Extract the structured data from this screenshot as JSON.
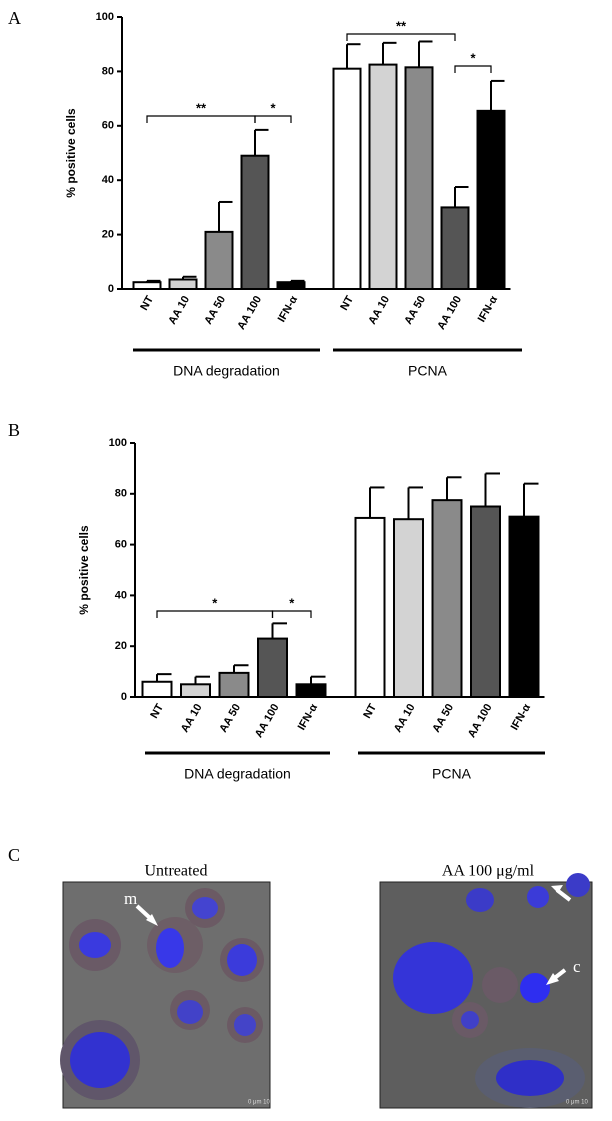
{
  "panels": [
    "A",
    "B",
    "C"
  ],
  "chart_data": [
    {
      "type": "bar",
      "ylabel": "% positive cells",
      "categories": [
        "NT",
        "AA 10",
        "AA 50",
        "AA 100",
        "IFN-α",
        "NT",
        "AA 10",
        "AA 50",
        "AA 100",
        "IFN-α"
      ],
      "values": [
        2.5,
        3.5,
        21,
        49,
        2.5,
        81,
        82.5,
        81.5,
        30,
        65.5
      ],
      "errors": [
        0.5,
        1,
        11,
        9.5,
        0.5,
        9,
        8,
        9.5,
        7.5,
        11
      ],
      "colors": [
        "#ffffff",
        "#d3d3d3",
        "#8a8a8a",
        "#555555",
        "#000000",
        "#ffffff",
        "#d3d3d3",
        "#8a8a8a",
        "#555555",
        "#000000"
      ],
      "groups": [
        "DNA degradation",
        "PCNA"
      ],
      "annotations": [
        "**",
        "*",
        "**",
        "*"
      ],
      "ylim": [
        0,
        100
      ],
      "yticks": [
        0,
        20,
        40,
        60,
        80,
        100
      ]
    },
    {
      "type": "bar",
      "ylabel": "% positive cells",
      "categories": [
        "NT",
        "AA 10",
        "AA 50",
        "AA 100",
        "IFN-α",
        "NT",
        "AA 10",
        "AA 50",
        "AA 100",
        "IFN-α"
      ],
      "values": [
        6,
        5,
        9.5,
        23,
        5,
        70.5,
        70,
        77.5,
        75,
        71
      ],
      "errors": [
        3,
        3,
        3,
        6,
        3,
        12,
        12.5,
        9,
        13,
        13
      ],
      "colors": [
        "#ffffff",
        "#d3d3d3",
        "#8a8a8a",
        "#555555",
        "#000000",
        "#ffffff",
        "#d3d3d3",
        "#8a8a8a",
        "#555555",
        "#000000"
      ],
      "groups": [
        "DNA degradation",
        "PCNA"
      ],
      "annotations": [
        "*",
        "*"
      ],
      "ylim": [
        0,
        100
      ],
      "yticks": [
        0,
        20,
        40,
        60,
        80,
        100
      ]
    }
  ],
  "images": [
    {
      "title": "Untreated",
      "marker": "m",
      "scale": "0 μm 10"
    },
    {
      "title": "AA 100 μg/ml",
      "marker": "c",
      "scale": "0 μm 10"
    }
  ]
}
